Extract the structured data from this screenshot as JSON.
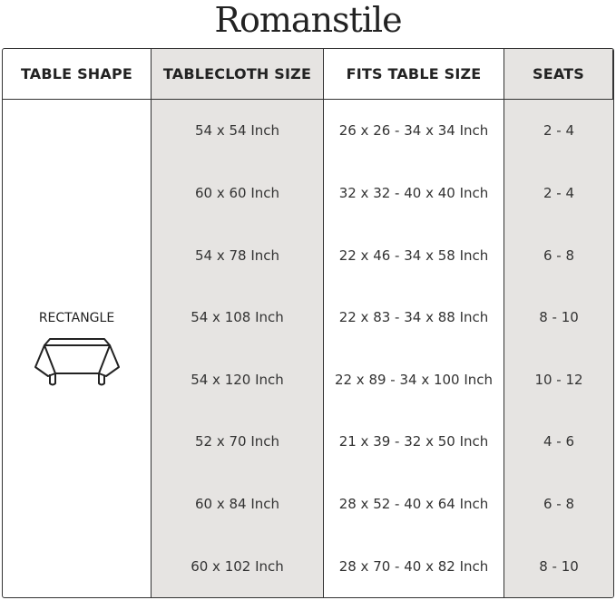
{
  "brand": "Romanstile",
  "colors": {
    "border": "#333333",
    "shaded_column": "#e6e4e2"
  },
  "headers": [
    "TABLE SHAPE",
    "TABLECLOTH SIZE",
    "FITS TABLE SIZE",
    "SEATS"
  ],
  "shape": {
    "label": "RECTANGLE",
    "icon": "rectangle-table-icon"
  },
  "rows": [
    {
      "size": "54 x 54 Inch",
      "fits": "26 x 26 - 34 x 34 Inch",
      "seats": "2 - 4"
    },
    {
      "size": "60 x 60 Inch",
      "fits": "32 x 32 - 40 x 40 Inch",
      "seats": "2 - 4"
    },
    {
      "size": "54 x 78 Inch",
      "fits": "22 x 46 - 34 x 58 Inch",
      "seats": "6 - 8"
    },
    {
      "size": "54 x 108 Inch",
      "fits": "22 x 83 - 34 x 88 Inch",
      "seats": "8 - 10"
    },
    {
      "size": "54 x 120 Inch",
      "fits": "22 x 89 - 34 x 100 Inch",
      "seats": "10 - 12"
    },
    {
      "size": "52 x 70 Inch",
      "fits": "21 x 39 - 32 x 50 Inch",
      "seats": "4 - 6"
    },
    {
      "size": "60 x 84 Inch",
      "fits": "28 x 52 - 40 x 64 Inch",
      "seats": "6 - 8"
    },
    {
      "size": "60 x 102 Inch",
      "fits": "28 x 70 - 40 x 82 Inch",
      "seats": "8 - 10"
    }
  ]
}
